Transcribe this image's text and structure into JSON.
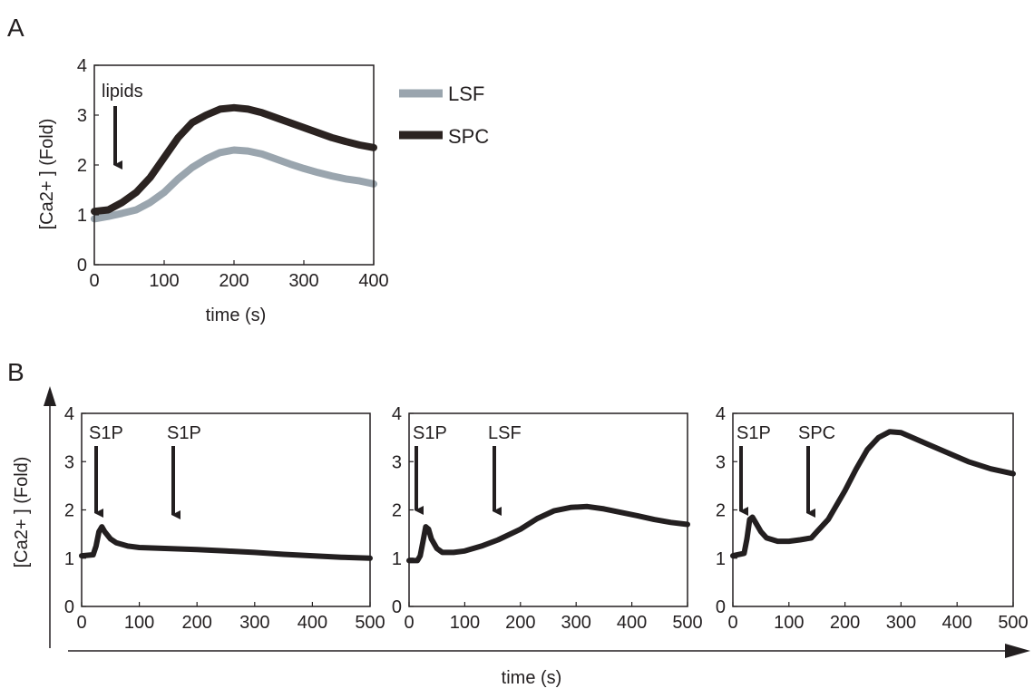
{
  "panels": {
    "a": {
      "letter": "A"
    },
    "b": {
      "letter": "B"
    }
  },
  "shared": {
    "xlabel": "time (s)",
    "ylabel": "[Ca2+ ] (Fold)"
  },
  "colors": {
    "spc": "#2b2321",
    "lsf": "#9aa5ae",
    "frame": "#231f20",
    "trace": "#231f20"
  },
  "chart_data": [
    {
      "id": "A",
      "type": "line",
      "title": "",
      "xlabel": "time (s)",
      "ylabel": "[Ca2+ ] (Fold)",
      "xlim": [
        0,
        400
      ],
      "ylim": [
        0,
        4
      ],
      "xticks": [
        0,
        100,
        200,
        300,
        400
      ],
      "yticks": [
        0,
        1,
        2,
        3,
        4
      ],
      "grid": false,
      "legend_position": "right",
      "annotations": [
        {
          "text": "lipids",
          "x": 30
        }
      ],
      "series": [
        {
          "name": "LSF",
          "color": "#9aa5ae",
          "x": [
            0,
            20,
            40,
            60,
            80,
            100,
            120,
            140,
            160,
            180,
            200,
            220,
            240,
            260,
            280,
            300,
            320,
            340,
            360,
            380,
            400
          ],
          "y": [
            0.92,
            0.97,
            1.03,
            1.1,
            1.25,
            1.45,
            1.72,
            1.95,
            2.12,
            2.25,
            2.3,
            2.28,
            2.22,
            2.12,
            2.02,
            1.93,
            1.85,
            1.78,
            1.72,
            1.68,
            1.62
          ]
        },
        {
          "name": "SPC",
          "color": "#2b2321",
          "x": [
            0,
            20,
            40,
            60,
            80,
            100,
            120,
            140,
            160,
            180,
            200,
            220,
            240,
            260,
            280,
            300,
            320,
            340,
            360,
            380,
            400
          ],
          "y": [
            1.07,
            1.1,
            1.25,
            1.45,
            1.75,
            2.15,
            2.55,
            2.85,
            3.0,
            3.12,
            3.15,
            3.12,
            3.05,
            2.95,
            2.85,
            2.75,
            2.65,
            2.55,
            2.47,
            2.4,
            2.35
          ]
        }
      ]
    },
    {
      "id": "B1",
      "type": "line",
      "xlim": [
        0,
        500
      ],
      "ylim": [
        0,
        4
      ],
      "xticks": [
        0,
        100,
        200,
        300,
        400,
        500
      ],
      "yticks": [
        0,
        1,
        2,
        3,
        4
      ],
      "grid": false,
      "annotations": [
        {
          "text": "S1P",
          "x": 25
        },
        {
          "text": "S1P",
          "x": 155
        }
      ],
      "series": [
        {
          "x": [
            0,
            20,
            25,
            30,
            35,
            40,
            50,
            60,
            80,
            100,
            150,
            200,
            250,
            300,
            350,
            400,
            450,
            500
          ],
          "y": [
            1.05,
            1.07,
            1.25,
            1.55,
            1.65,
            1.55,
            1.4,
            1.32,
            1.25,
            1.22,
            1.2,
            1.18,
            1.15,
            1.12,
            1.08,
            1.05,
            1.02,
            1.0
          ]
        }
      ]
    },
    {
      "id": "B2",
      "type": "line",
      "xlim": [
        0,
        500
      ],
      "ylim": [
        0,
        4
      ],
      "xticks": [
        0,
        100,
        200,
        300,
        400,
        500
      ],
      "yticks": [
        0,
        1,
        2,
        3,
        4
      ],
      "grid": false,
      "annotations": [
        {
          "text": "S1P",
          "x": 15
        },
        {
          "text": "LSF",
          "x": 155
        }
      ],
      "series": [
        {
          "x": [
            0,
            15,
            20,
            25,
            30,
            35,
            40,
            50,
            60,
            80,
            100,
            130,
            160,
            200,
            230,
            260,
            290,
            320,
            350,
            380,
            410,
            440,
            470,
            500
          ],
          "y": [
            0.95,
            0.95,
            1.05,
            1.35,
            1.65,
            1.6,
            1.4,
            1.2,
            1.12,
            1.12,
            1.15,
            1.25,
            1.38,
            1.6,
            1.82,
            1.98,
            2.05,
            2.07,
            2.02,
            1.95,
            1.88,
            1.8,
            1.74,
            1.7
          ]
        }
      ]
    },
    {
      "id": "B3",
      "type": "line",
      "xlim": [
        0,
        500
      ],
      "ylim": [
        0,
        4
      ],
      "xticks": [
        0,
        100,
        200,
        300,
        400,
        500
      ],
      "yticks": [
        0,
        1,
        2,
        3,
        4
      ],
      "grid": false,
      "annotations": [
        {
          "text": "S1P",
          "x": 20
        },
        {
          "text": "SPC",
          "x": 140
        }
      ],
      "series": [
        {
          "x": [
            0,
            20,
            25,
            30,
            35,
            40,
            50,
            60,
            80,
            100,
            120,
            140,
            150,
            170,
            200,
            220,
            240,
            260,
            280,
            300,
            320,
            340,
            380,
            420,
            460,
            500
          ],
          "y": [
            1.05,
            1.1,
            1.4,
            1.8,
            1.85,
            1.75,
            1.55,
            1.42,
            1.35,
            1.35,
            1.38,
            1.42,
            1.55,
            1.8,
            2.4,
            2.85,
            3.25,
            3.5,
            3.62,
            3.6,
            3.5,
            3.4,
            3.2,
            3.0,
            2.85,
            2.75
          ]
        }
      ]
    }
  ]
}
